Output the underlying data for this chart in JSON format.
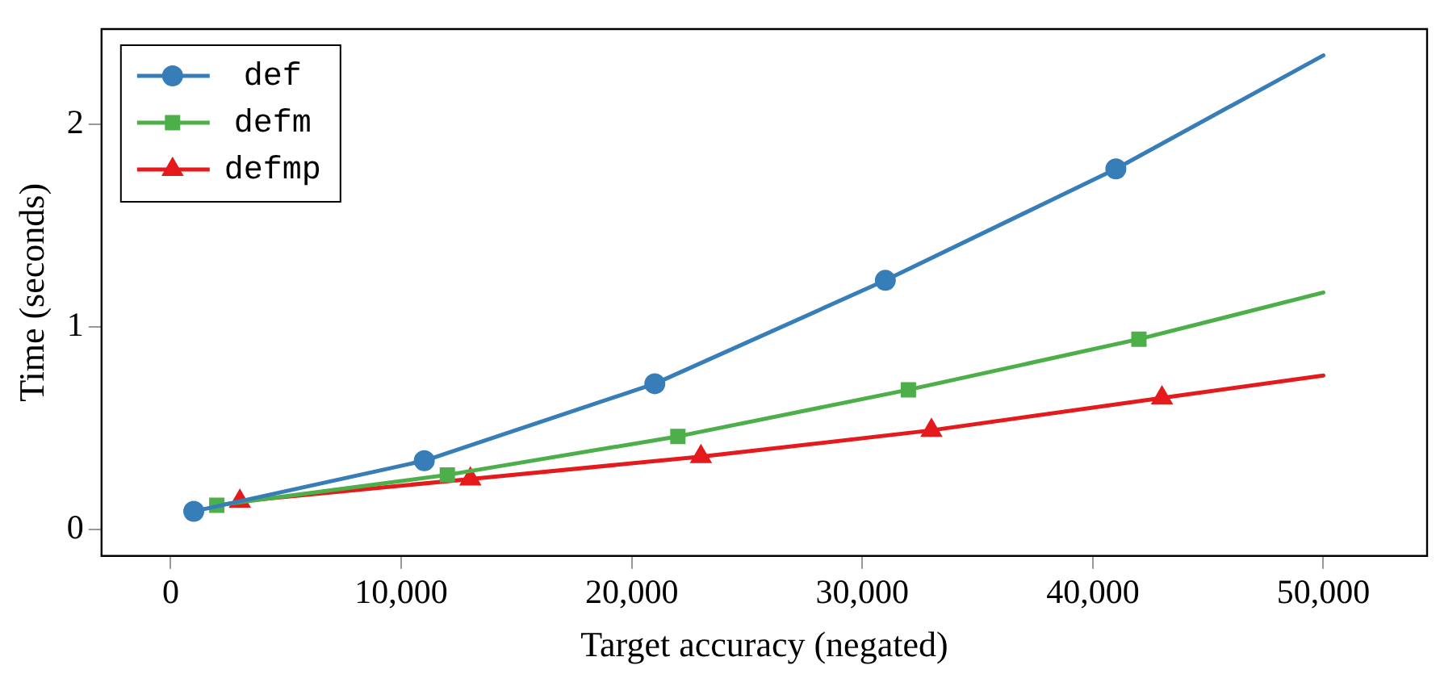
{
  "chart_data": {
    "type": "line",
    "xlabel": "Target accuracy (negated)",
    "ylabel": "Time (seconds)",
    "xlim": [
      -3000,
      54500
    ],
    "ylim": [
      -0.13,
      2.47
    ],
    "xticks": [
      {
        "value": 0,
        "label": "0"
      },
      {
        "value": 10000,
        "label": "10,000"
      },
      {
        "value": 20000,
        "label": "20,000"
      },
      {
        "value": 30000,
        "label": "30,000"
      },
      {
        "value": 40000,
        "label": "40,000"
      },
      {
        "value": 50000,
        "label": "50,000"
      }
    ],
    "yticks": [
      0,
      1,
      2
    ],
    "legend": "top left",
    "grid": false,
    "line_style": "solid",
    "series": [
      {
        "name": "def",
        "color": "#377eb8",
        "marker": "circle",
        "x": [
          1000,
          11000,
          21000,
          31000,
          41000,
          50000
        ],
        "values": [
          0.09,
          0.34,
          0.72,
          1.23,
          1.78,
          2.34
        ]
      },
      {
        "name": "defm",
        "color": "#4daf4a",
        "marker": "square",
        "x": [
          2000,
          12000,
          22000,
          32000,
          42000,
          50000
        ],
        "values": [
          0.12,
          0.27,
          0.46,
          0.69,
          0.94,
          1.17
        ]
      },
      {
        "name": "defmp",
        "color": "#e41a1c",
        "marker": "triangle",
        "x": [
          3000,
          13000,
          23000,
          33000,
          43000,
          50000
        ],
        "values": [
          0.14,
          0.25,
          0.36,
          0.49,
          0.65,
          0.76
        ]
      }
    ]
  }
}
